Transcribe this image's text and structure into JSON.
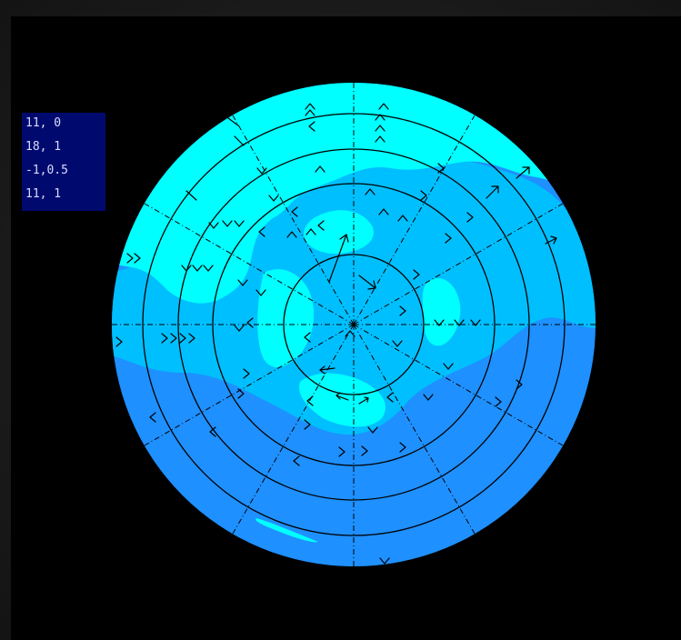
{
  "legend": {
    "items": [
      "11, 0",
      "18, 1",
      "-1,0.5",
      "11, 1"
    ]
  },
  "map": {
    "projection": "polar-stereographic",
    "rings": 4,
    "meridians": 12,
    "colors": {
      "frame": "#1c1c1c",
      "background": "#000000",
      "legend_bg": "#000a6e",
      "legend_text": "#d9dcff",
      "high": "#00ffff",
      "mid": "#00bfff",
      "low": "#1e90ff",
      "lines": "#000000"
    },
    "icons": [
      "wind-arrow-icon"
    ]
  }
}
